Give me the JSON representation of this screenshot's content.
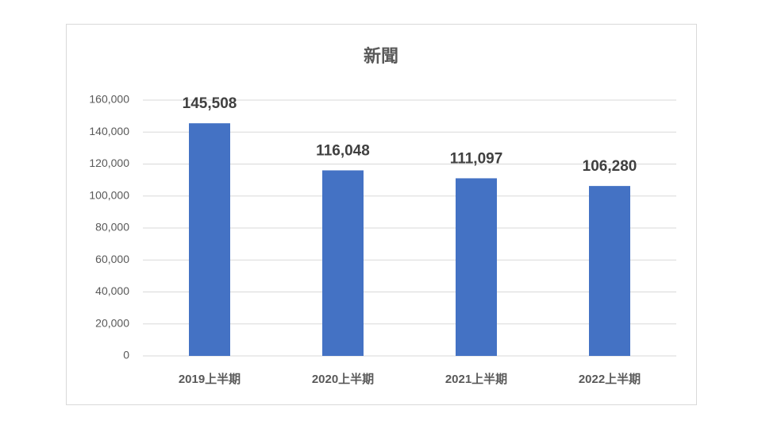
{
  "chart_data": {
    "type": "bar",
    "title": "新聞",
    "categories": [
      "2019上半期",
      "2020上半期",
      "2021上半期",
      "2022上半期"
    ],
    "values": [
      145508,
      116048,
      111097,
      106280
    ],
    "value_labels": [
      "145,508",
      "116,048",
      "111,097",
      "106,280"
    ],
    "color": "#4472c4",
    "ylim": [
      0,
      160000
    ],
    "yticks": [
      0,
      {
        "value": 20000,
        "label": "20,000"
      },
      {
        "value": 40000,
        "label": "40,000"
      },
      {
        "value": 60000,
        "label": "60,000"
      },
      {
        "value": 80000,
        "label": "80,000"
      },
      {
        "value": 100000,
        "label": "100,000"
      },
      {
        "value": 120000,
        "label": "120,000"
      },
      {
        "value": 140000,
        "label": "140,000"
      },
      {
        "value": 160000,
        "label": "160,000"
      }
    ],
    "grid": true
  }
}
